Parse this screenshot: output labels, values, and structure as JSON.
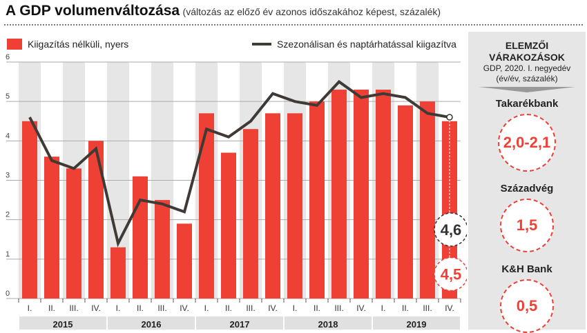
{
  "title": {
    "main": "A GDP volumenváltozása",
    "sub": "(változás az előző év azonos időszakához képest, százalék)"
  },
  "legend": {
    "bars": "Kiigazítás nélküli, nyers",
    "line": "Szezonálisan és naptárhatással kiigazítva"
  },
  "colors": {
    "bar": "#ef4035",
    "line": "#3f3a36",
    "band": "#e6e6e6"
  },
  "chart_data": {
    "type": "bar",
    "categories": [
      "I.",
      "II.",
      "III.",
      "IV.",
      "I.",
      "II.",
      "III.",
      "IV.",
      "I.",
      "II.",
      "III.",
      "IV.",
      "I.",
      "II.",
      "III.",
      "IV.",
      "I.",
      "II.",
      "III.",
      "IV."
    ],
    "years": [
      "2015",
      "2016",
      "2017",
      "2018",
      "2019"
    ],
    "series": [
      {
        "name": "Kiigazítás nélküli, nyers",
        "type": "bar",
        "values": [
          4.5,
          3.6,
          3.3,
          4.0,
          1.3,
          3.1,
          2.5,
          1.9,
          4.7,
          3.7,
          4.3,
          4.7,
          4.7,
          5.0,
          5.3,
          5.3,
          5.3,
          4.9,
          5.0,
          4.5
        ]
      },
      {
        "name": "Szezonálisan és naptárhatással kiigazítva",
        "type": "line",
        "values": [
          4.6,
          3.5,
          3.3,
          3.8,
          1.4,
          2.5,
          2.4,
          2.2,
          4.3,
          4.1,
          4.5,
          5.2,
          5.0,
          4.9,
          5.5,
          5.1,
          5.2,
          5.1,
          4.7,
          4.6
        ]
      }
    ],
    "yticks": [
      "0",
      "1",
      "2",
      "3",
      "4",
      "5",
      "6"
    ],
    "ylim": [
      0,
      6
    ],
    "annotations": {
      "line_last": "4,6",
      "bar_last": "4,5"
    }
  },
  "panel": {
    "heading": "ELEMZŐI VÁRAKOZÁSOK",
    "sub1": "GDP, 2020. I. negyedév",
    "sub2": "(év/év, százalék)",
    "forecasts": [
      {
        "bank": "Takarékbank",
        "value": "2,0-2,1"
      },
      {
        "bank": "Századvég",
        "value": "1,5"
      },
      {
        "bank": "K&H Bank",
        "value": "0,5"
      }
    ]
  }
}
